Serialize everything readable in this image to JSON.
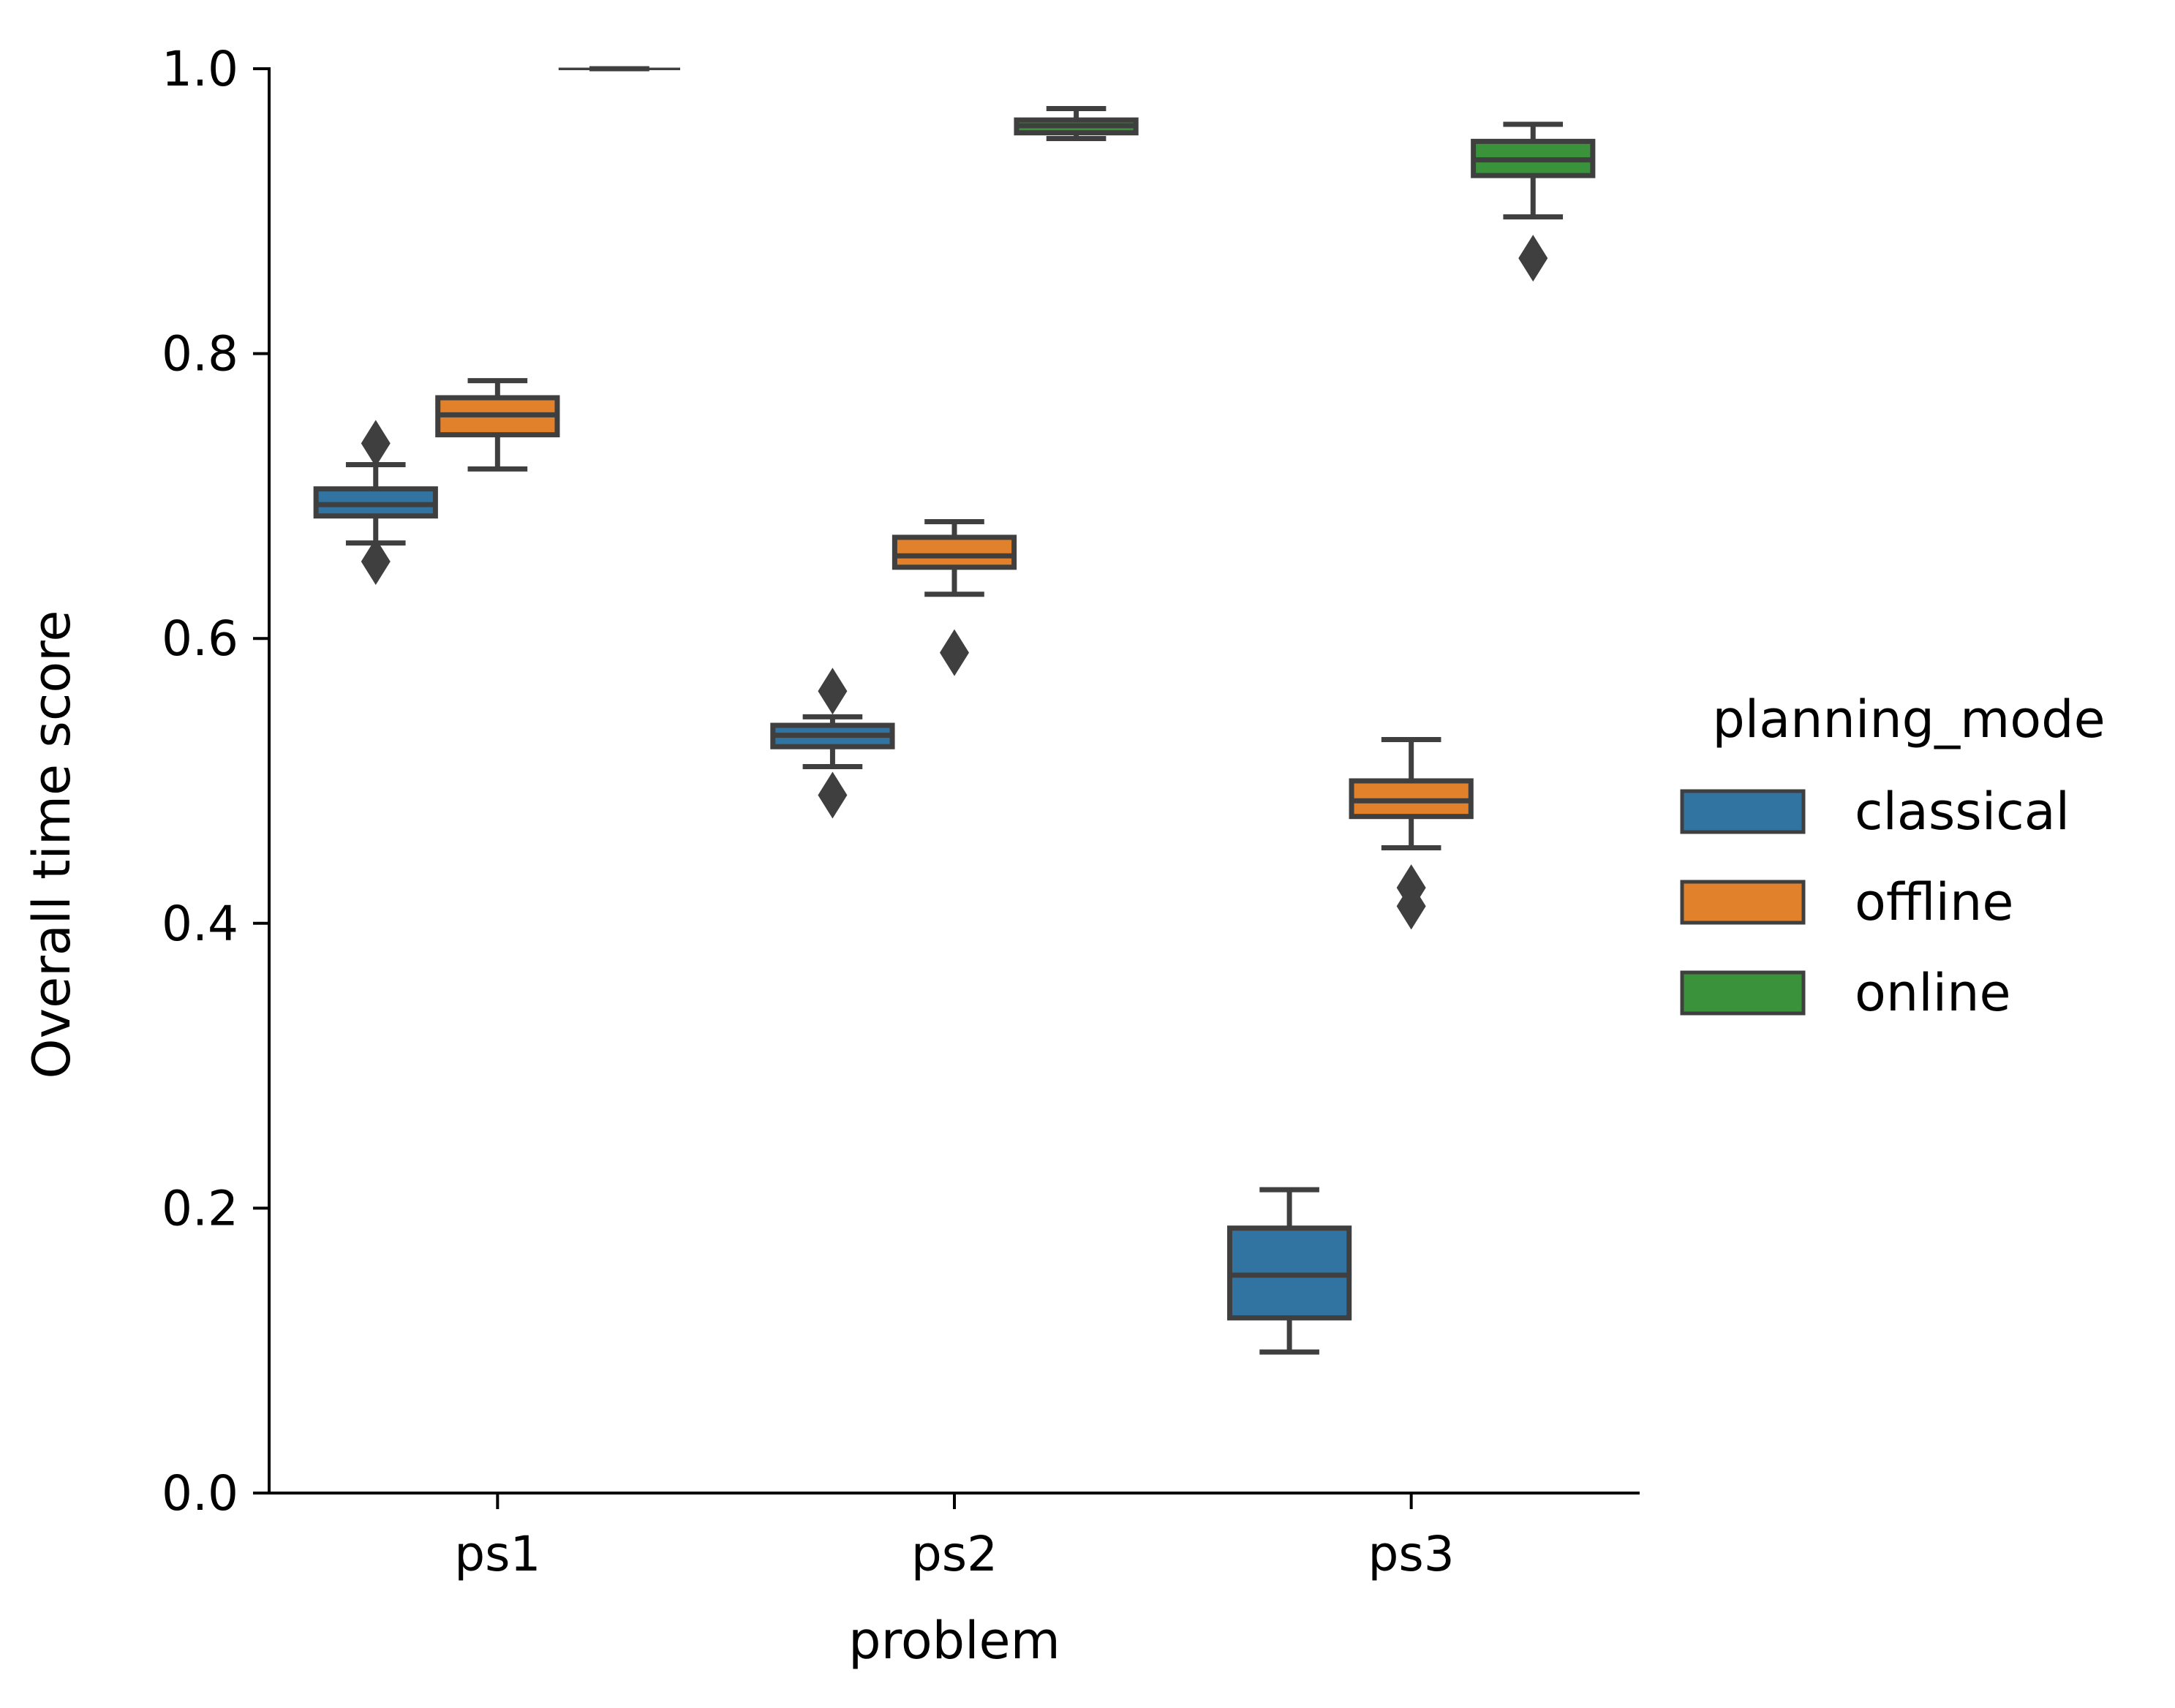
{
  "chart_data": {
    "type": "box",
    "xlabel": "problem",
    "ylabel": "Overall time score",
    "categories": [
      "ps1",
      "ps2",
      "ps3"
    ],
    "ylim": [
      0.0,
      1.0
    ],
    "yticks": [
      "0.0",
      "0.2",
      "0.4",
      "0.6",
      "0.8",
      "1.0"
    ],
    "legend": {
      "title": "planning_mode",
      "position": "right"
    },
    "line_color": "#3f3f3f",
    "series": [
      {
        "name": "classical",
        "color": "#3274a1",
        "boxes": [
          {
            "category": "ps1",
            "whisker_low": 0.667,
            "q1": 0.686,
            "median": 0.694,
            "q3": 0.705,
            "whisker_high": 0.722,
            "outliers": [
              0.737,
              0.654
            ]
          },
          {
            "category": "ps2",
            "whisker_low": 0.51,
            "q1": 0.524,
            "median": 0.532,
            "q3": 0.539,
            "whisker_high": 0.545,
            "outliers": [
              0.563,
              0.49
            ]
          },
          {
            "category": "ps3",
            "whisker_low": 0.099,
            "q1": 0.123,
            "median": 0.153,
            "q3": 0.186,
            "whisker_high": 0.213,
            "outliers": []
          }
        ]
      },
      {
        "name": "offline",
        "color": "#e1812c",
        "boxes": [
          {
            "category": "ps1",
            "whisker_low": 0.719,
            "q1": 0.743,
            "median": 0.757,
            "q3": 0.769,
            "whisker_high": 0.781,
            "outliers": []
          },
          {
            "category": "ps2",
            "whisker_low": 0.631,
            "q1": 0.65,
            "median": 0.658,
            "q3": 0.671,
            "whisker_high": 0.682,
            "outliers": [
              0.59
            ]
          },
          {
            "category": "ps3",
            "whisker_low": 0.453,
            "q1": 0.475,
            "median": 0.486,
            "q3": 0.5,
            "whisker_high": 0.529,
            "outliers": [
              0.425,
              0.412
            ]
          }
        ]
      },
      {
        "name": "online",
        "color": "#3a923a",
        "boxes": [
          {
            "category": "ps1",
            "whisker_low": 1.0,
            "q1": 1.0,
            "median": 1.0,
            "q3": 1.0,
            "whisker_high": 1.0,
            "outliers": []
          },
          {
            "category": "ps2",
            "whisker_low": 0.951,
            "q1": 0.955,
            "median": 0.96,
            "q3": 0.964,
            "whisker_high": 0.972,
            "outliers": []
          },
          {
            "category": "ps3",
            "whisker_low": 0.896,
            "q1": 0.925,
            "median": 0.936,
            "q3": 0.949,
            "whisker_high": 0.961,
            "outliers": [
              0.867
            ]
          }
        ]
      }
    ]
  }
}
